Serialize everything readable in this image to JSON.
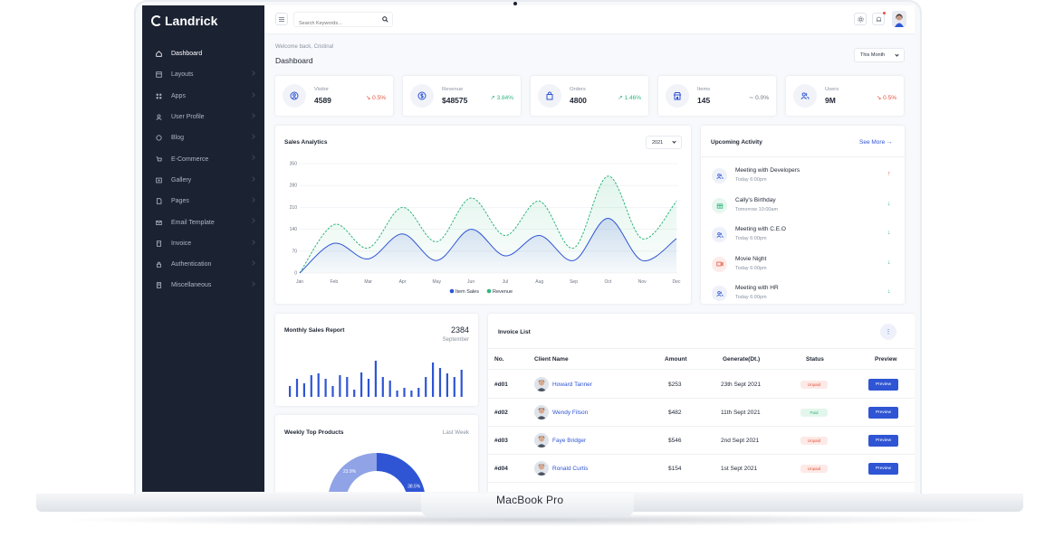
{
  "device": {
    "label": "MacBook Pro"
  },
  "app": {
    "name": "Landrick"
  },
  "sidebar": {
    "items": [
      {
        "label": "Dashboard",
        "icon": "home-icon",
        "active": true
      },
      {
        "label": "Layouts",
        "icon": "layout-icon",
        "active": false
      },
      {
        "label": "Apps",
        "icon": "apps-icon",
        "active": false
      },
      {
        "label": "User Profile",
        "icon": "user-icon",
        "active": false
      },
      {
        "label": "Blog",
        "icon": "blog-icon",
        "active": false
      },
      {
        "label": "E-Commerce",
        "icon": "cart-icon",
        "active": false
      },
      {
        "label": "Gallery",
        "icon": "gallery-icon",
        "active": false
      },
      {
        "label": "Pages",
        "icon": "pages-icon",
        "active": false
      },
      {
        "label": "Email Template",
        "icon": "mail-icon",
        "active": false
      },
      {
        "label": "Invoice",
        "icon": "invoice-icon",
        "active": false
      },
      {
        "label": "Authentication",
        "icon": "lock-icon",
        "active": false
      },
      {
        "label": "Miscellaneous",
        "icon": "misc-icon",
        "active": false
      }
    ]
  },
  "topbar": {
    "search_placeholder": "Search Keywords..."
  },
  "header": {
    "welcome": "Welcome back, Cristina!",
    "title": "Dashboard",
    "period": "This Month"
  },
  "stats": [
    {
      "label": "Visitor",
      "value": "4589",
      "delta": "0.5%",
      "trend": "down",
      "icon": "visitor-icon"
    },
    {
      "label": "Revenue",
      "value": "$48575",
      "delta": "3.84%",
      "trend": "up",
      "icon": "dollar-icon"
    },
    {
      "label": "Orders",
      "value": "4800",
      "delta": "1.46%",
      "trend": "up",
      "icon": "bag-icon"
    },
    {
      "label": "Items",
      "value": "145",
      "delta": "0.0%",
      "trend": "flat",
      "icon": "store-icon"
    },
    {
      "label": "Users",
      "value": "9M",
      "delta": "0.5%",
      "trend": "down",
      "icon": "users-icon"
    }
  ],
  "sales_analytics": {
    "title": "Sales Analytics",
    "year": "2021"
  },
  "chart_data": [
    {
      "type": "line",
      "title": "Sales Analytics",
      "categories": [
        "Jan",
        "Feb",
        "Mar",
        "Apr",
        "May",
        "Jun",
        "Jul",
        "Aug",
        "Sep",
        "Oct",
        "Nov",
        "Dec"
      ],
      "yticks": [
        "350",
        "280",
        "210",
        "140",
        "70",
        "0"
      ],
      "ylim": [
        0,
        350
      ],
      "series": [
        {
          "name": "Item Sales",
          "color": "#2f55d4",
          "values": [
            0,
            95,
            45,
            125,
            40,
            140,
            55,
            120,
            40,
            175,
            40,
            110
          ]
        },
        {
          "name": "Revenue",
          "color": "#2eb67d",
          "values": [
            0,
            155,
            80,
            210,
            100,
            240,
            120,
            230,
            80,
            310,
            110,
            230
          ]
        }
      ],
      "legend_position": "bottom"
    },
    {
      "type": "bar",
      "title": "Monthly Sales Report",
      "values": [
        12,
        20,
        15,
        24,
        26,
        20,
        12,
        24,
        22,
        8,
        27,
        20,
        40,
        22,
        18,
        7,
        10,
        7,
        10,
        22,
        38,
        32,
        26,
        22,
        30
      ],
      "color": "#2f55d4"
    },
    {
      "type": "pie",
      "title": "Weekly Top Products",
      "slices": [
        {
          "label": "38.5%",
          "value": 38.5,
          "color": "#2f55d4"
        },
        {
          "label": "23.9%",
          "value": 23.9,
          "color": "#8fa3e6"
        }
      ]
    }
  ],
  "monthly_sales": {
    "title": "Monthly Sales Report",
    "value": "2384",
    "month": "September"
  },
  "weekly_products": {
    "title": "Weekly Top Products",
    "period": "Last Week"
  },
  "activity": {
    "title": "Upcoming Activity",
    "see_more": "See More",
    "items": [
      {
        "title": "Meeting with Developers",
        "time": "Today 6:00pm",
        "icon": "users-icon",
        "icon_color": "#2f55d4",
        "arrow": "↑",
        "arrow_color": "#e5533d"
      },
      {
        "title": "Cally's Birthday",
        "time": "Tomorrow 10:00am",
        "icon": "gift-icon",
        "icon_color": "#2eb67d",
        "arrow": "↓",
        "arrow_color": "#2eb67d"
      },
      {
        "title": "Meeting with C.E.O",
        "time": "Today 6:00pm",
        "icon": "users-icon",
        "icon_color": "#2f55d4",
        "arrow": "↓",
        "arrow_color": "#2eb67d"
      },
      {
        "title": "Movie Night",
        "time": "Today 6:00pm",
        "icon": "video-icon",
        "icon_color": "#e5533d",
        "arrow": "↓",
        "arrow_color": "#2eb67d"
      },
      {
        "title": "Meeting with HR",
        "time": "Today 6:00pm",
        "icon": "users-icon",
        "icon_color": "#2f55d4",
        "arrow": "↓",
        "arrow_color": "#2eb67d"
      }
    ]
  },
  "invoice": {
    "title": "Invoice List",
    "columns": [
      "No.",
      "Client Name",
      "Amount",
      "Generate(Dt.)",
      "Status",
      "Preview"
    ],
    "rows": [
      {
        "no": "#d01",
        "name": "Howard Tanner",
        "amount": "$253",
        "date": "23th Sept 2021",
        "status": "Unpaid",
        "action": "Preview"
      },
      {
        "no": "#d02",
        "name": "Wendy Filson",
        "amount": "$482",
        "date": "11th Sept 2021",
        "status": "Paid",
        "action": "Preview"
      },
      {
        "no": "#d03",
        "name": "Faye Bridger",
        "amount": "$546",
        "date": "2nd Sept 2021",
        "status": "Unpaid",
        "action": "Preview"
      },
      {
        "no": "#d04",
        "name": "Ronald Curtis",
        "amount": "$154",
        "date": "1st Sept 2021",
        "status": "Unpaid",
        "action": "Preview"
      }
    ]
  }
}
